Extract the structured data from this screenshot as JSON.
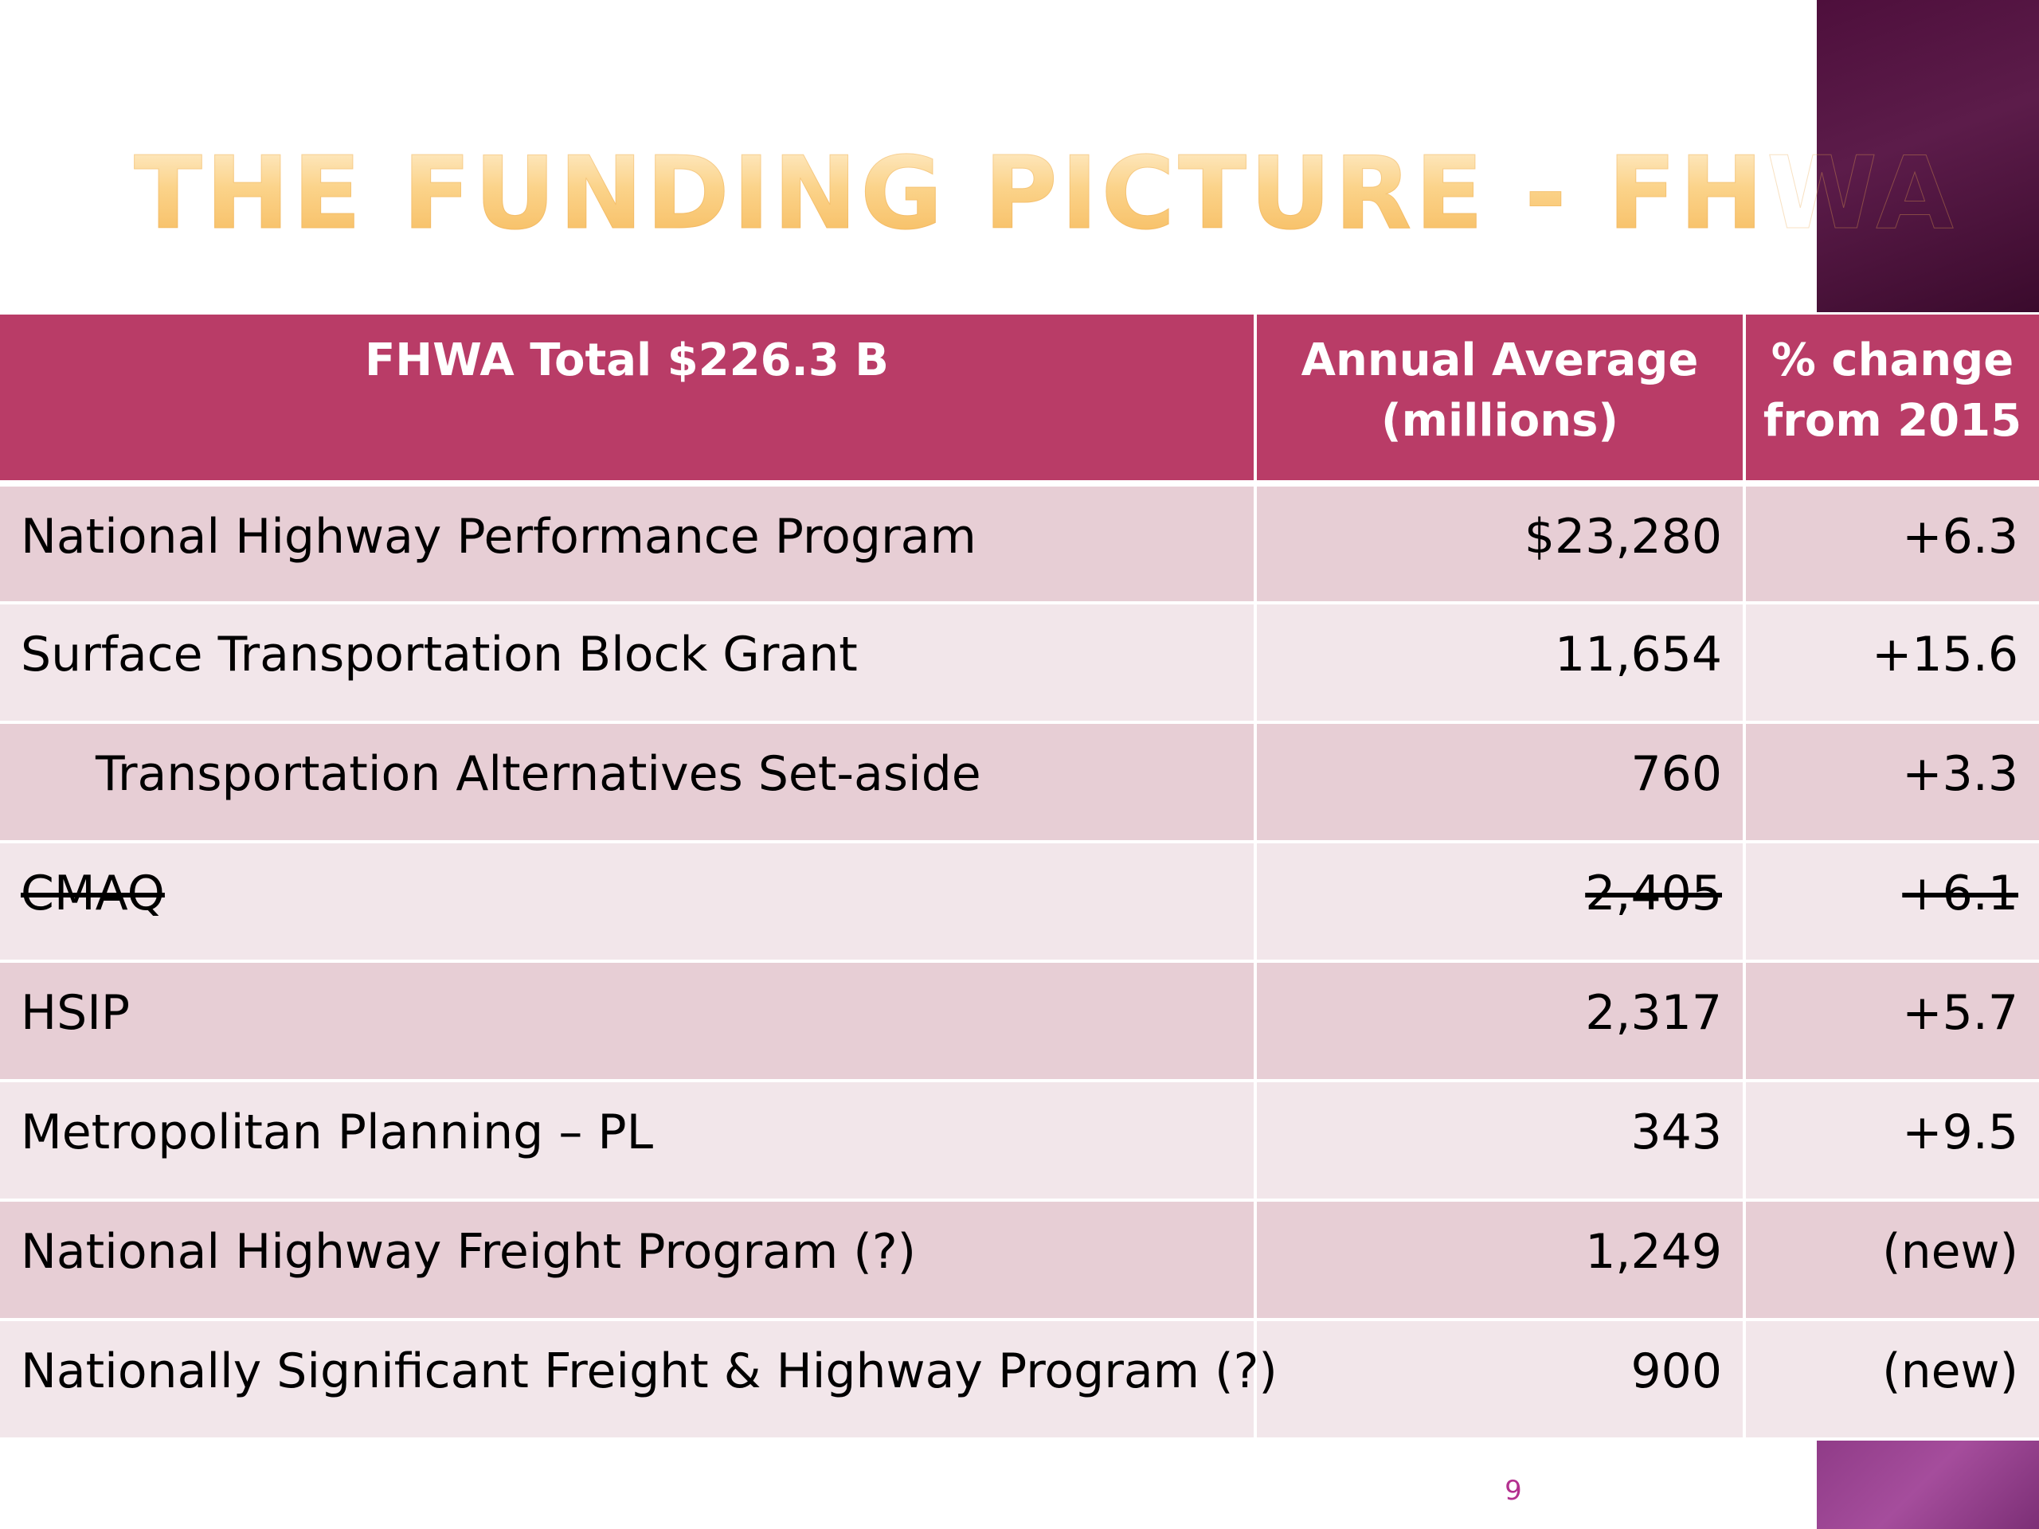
{
  "slide": {
    "title": "The Funding Picture - FHWA",
    "page_number": "9"
  },
  "table": {
    "headers": {
      "program": "FHWA Total $226.3 B",
      "annual_average_line1": "Annual Average",
      "annual_average_line2": "(millions)",
      "pct_change_line1": "% change",
      "pct_change_line2": "from 2015"
    },
    "rows": [
      {
        "program": "National Highway Performance Program",
        "annual_average": "$23,280",
        "pct_change": "+6.3"
      },
      {
        "program": "Surface Transportation Block Grant",
        "annual_average": "11,654",
        "pct_change": "+15.6"
      },
      {
        "program": "Transportation Alternatives Set-aside",
        "annual_average": "760",
        "pct_change": "+3.3"
      },
      {
        "program": "CMAQ",
        "annual_average": "2,405",
        "pct_change": "+6.1"
      },
      {
        "program": "HSIP",
        "annual_average": "2,317",
        "pct_change": "+5.7"
      },
      {
        "program": "Metropolitan Planning – PL",
        "annual_average": "343",
        "pct_change": "+9.5"
      },
      {
        "program": "National Highway Freight Program (?)",
        "annual_average": "1,249",
        "pct_change": "(new)"
      },
      {
        "program": "Nationally Significant Freight & Highway Program (?)",
        "annual_average": "900",
        "pct_change": "(new)"
      }
    ]
  },
  "colors": {
    "header_bg": "#b93c67",
    "row_odd_bg": "#e7ced5",
    "row_even_bg": "#f2e6ea",
    "title_gradient": [
      "#fff1d6",
      "#f6b95a"
    ],
    "accent_dark": "#4e0f3c",
    "accent_light": "#a54d9c"
  }
}
